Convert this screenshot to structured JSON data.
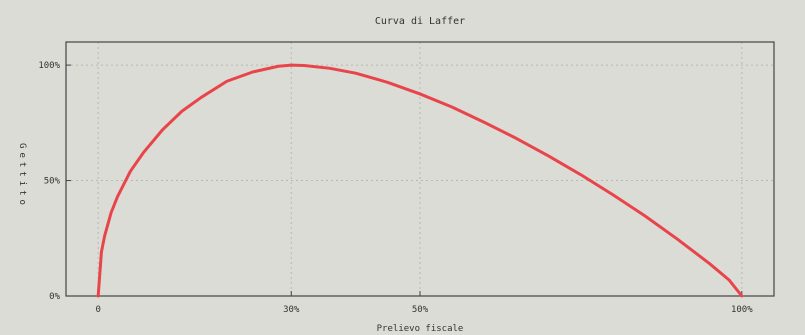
{
  "chart_data": {
    "type": "line",
    "title": "Curva di Laffer",
    "xlabel": "Prelievo fiscale",
    "ylabel": "Gettito",
    "xlim": [
      -5,
      105
    ],
    "ylim": [
      0,
      110
    ],
    "x_ticks": [
      {
        "value": 0,
        "label": "0"
      },
      {
        "value": 30,
        "label": "30%"
      },
      {
        "value": 50,
        "label": "50%"
      },
      {
        "value": 100,
        "label": "100%"
      }
    ],
    "y_ticks": [
      {
        "value": 0,
        "label": "0%"
      },
      {
        "value": 50,
        "label": "50%"
      },
      {
        "value": 100,
        "label": "100%"
      }
    ],
    "grid": true,
    "legend": "none",
    "colors": {
      "line": "#e8454b",
      "grid": "#b9b9b2",
      "axis": "#444444",
      "background": "#dcdcd6"
    },
    "series": [
      {
        "x": [
          0,
          0.5,
          1,
          2,
          3,
          5,
          7,
          10,
          13,
          16,
          20,
          24,
          28,
          30,
          32,
          36,
          40,
          45,
          50,
          55,
          60,
          65,
          70,
          75,
          80,
          85,
          90,
          95,
          98,
          100
        ],
        "y": [
          0,
          19,
          26,
          36,
          43,
          54,
          62,
          72,
          80,
          86,
          93,
          97,
          99.5,
          100,
          99.8,
          98.6,
          96.5,
          92.5,
          87.5,
          81.8,
          75.2,
          68.2,
          60.6,
          52.5,
          43.8,
          34.6,
          24.6,
          14,
          7,
          0
        ]
      }
    ]
  }
}
